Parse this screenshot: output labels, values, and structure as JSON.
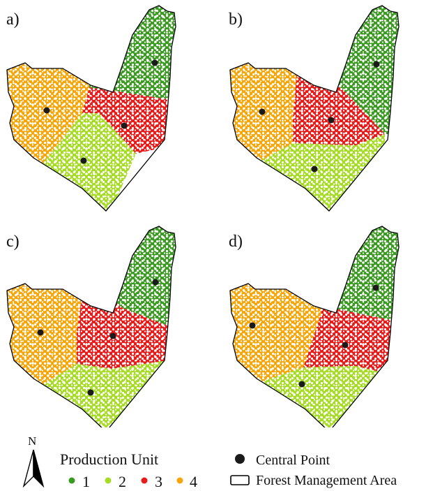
{
  "panels": [
    {
      "label": "a)"
    },
    {
      "label": "b)"
    },
    {
      "label": "c)"
    },
    {
      "label": "d)"
    }
  ],
  "legend": {
    "north_label": "N",
    "production_unit_title": "Production Unit",
    "units": [
      {
        "label": "1",
        "color": "#3b9a22"
      },
      {
        "label": "2",
        "color": "#a6dc25"
      },
      {
        "label": "3",
        "color": "#e81b1b"
      },
      {
        "label": "4",
        "color": "#f7a60a"
      }
    ],
    "central_point_label": "Central Point",
    "forest_area_label": "Forest Management Area"
  },
  "colors": {
    "boundary": "#000000",
    "central_point": "#1a1a1a"
  },
  "icons": [
    "north-arrow-icon",
    "central-point-icon",
    "forest-area-icon"
  ]
}
